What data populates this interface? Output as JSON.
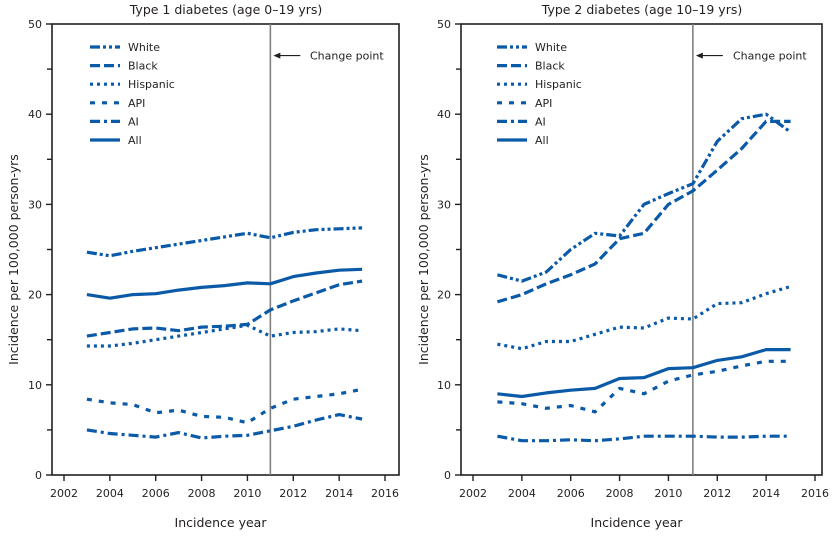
{
  "chart_data": [
    {
      "type": "line",
      "title": "Type 1 diabetes (age 0–19 yrs)",
      "xlabel": "Incidence year",
      "ylabel": "Incidence per 100,000 person-yrs",
      "xlim": [
        2002,
        2016
      ],
      "ylim": [
        0,
        50
      ],
      "xticks": [
        2002,
        2004,
        2006,
        2008,
        2010,
        2012,
        2014,
        2016
      ],
      "yticks": [
        0,
        10,
        20,
        30,
        40,
        50
      ],
      "grid": false,
      "legend_position": "top-left",
      "annotation": {
        "text": "Change point",
        "x": 2011,
        "y": 46.5
      },
      "change_point_x": 2011,
      "x": [
        2003,
        2004,
        2005,
        2006,
        2007,
        2008,
        2009,
        2010,
        2011,
        2012,
        2013,
        2014,
        2015
      ],
      "series": [
        {
          "name": "White",
          "style": "dash-dot-dot",
          "values": [
            24.7,
            24.3,
            24.8,
            25.2,
            25.6,
            26.0,
            26.4,
            26.8,
            26.3,
            26.9,
            27.2,
            27.3,
            27.4
          ]
        },
        {
          "name": "Black",
          "style": "dashed",
          "values": [
            15.4,
            15.8,
            16.2,
            16.3,
            16.0,
            16.4,
            16.5,
            16.7,
            18.3,
            19.3,
            20.2,
            21.1,
            21.5
          ]
        },
        {
          "name": "Hispanic",
          "style": "dotted",
          "values": [
            14.3,
            14.3,
            14.6,
            15.0,
            15.4,
            15.8,
            16.2,
            16.6,
            15.4,
            15.8,
            15.9,
            16.2,
            16.0
          ]
        },
        {
          "name": "API",
          "style": "dash-gap",
          "values": [
            8.4,
            8.0,
            7.8,
            6.9,
            7.2,
            6.5,
            6.4,
            5.8,
            7.4,
            8.4,
            8.7,
            9.0,
            9.5
          ]
        },
        {
          "name": "AI",
          "style": "dash-dot",
          "values": [
            5.0,
            4.6,
            4.4,
            4.2,
            4.7,
            4.1,
            4.3,
            4.4,
            4.9,
            5.4,
            6.1,
            6.7,
            6.2
          ]
        },
        {
          "name": "All",
          "style": "solid",
          "values": [
            20.0,
            19.6,
            20.0,
            20.1,
            20.5,
            20.8,
            21.0,
            21.3,
            21.2,
            22.0,
            22.4,
            22.7,
            22.8
          ]
        }
      ]
    },
    {
      "type": "line",
      "title": "Type 2 diabetes (age 10–19 yrs)",
      "xlabel": "Incidence year",
      "ylabel": "Incidence per 100,000 person-yrs",
      "xlim": [
        2002,
        2016
      ],
      "ylim": [
        0,
        50
      ],
      "xticks": [
        2002,
        2004,
        2006,
        2008,
        2010,
        2012,
        2014,
        2016
      ],
      "yticks": [
        0,
        10,
        20,
        30,
        40,
        50
      ],
      "grid": false,
      "legend_position": "top-left",
      "annotation": {
        "text": "Change point",
        "x": 2011,
        "y": 46.5
      },
      "change_point_x": 2011,
      "x": [
        2003,
        2004,
        2005,
        2006,
        2007,
        2008,
        2009,
        2010,
        2011,
        2012,
        2013,
        2014,
        2015
      ],
      "series": [
        {
          "name": "White",
          "style": "dash-dot-dot",
          "values": [
            22.2,
            21.5,
            22.5,
            25.0,
            26.8,
            26.5,
            30.0,
            31.2,
            32.3,
            37.0,
            39.5,
            40.0,
            38.0
          ]
        },
        {
          "name": "Black",
          "style": "dashed",
          "values": [
            19.2,
            20.0,
            21.2,
            22.2,
            23.4,
            26.2,
            26.8,
            30.0,
            31.5,
            33.8,
            36.2,
            39.2,
            39.2
          ]
        },
        {
          "name": "Hispanic",
          "style": "dotted",
          "values": [
            14.5,
            14.0,
            14.8,
            14.8,
            15.6,
            16.4,
            16.3,
            17.4,
            17.3,
            19.0,
            19.1,
            20.1,
            20.9
          ]
        },
        {
          "name": "API",
          "style": "dash-gap",
          "values": [
            8.1,
            7.9,
            7.4,
            7.7,
            7.0,
            9.6,
            9.0,
            10.4,
            11.1,
            11.5,
            12.1,
            12.6,
            12.6
          ]
        },
        {
          "name": "AI",
          "style": "dash-dot",
          "values": [
            4.3,
            3.8,
            3.8,
            3.9,
            3.8,
            4.0,
            4.3,
            4.3,
            4.3,
            4.2,
            4.2,
            4.3,
            4.3
          ]
        },
        {
          "name": "All",
          "style": "solid",
          "values": [
            9.0,
            8.7,
            9.1,
            9.4,
            9.6,
            10.7,
            10.8,
            11.8,
            11.9,
            12.7,
            13.1,
            13.9,
            13.9
          ]
        }
      ]
    }
  ],
  "colors": {
    "series": "#0a5aa8",
    "axis": "#231f20",
    "change_point_line": "#808080"
  }
}
